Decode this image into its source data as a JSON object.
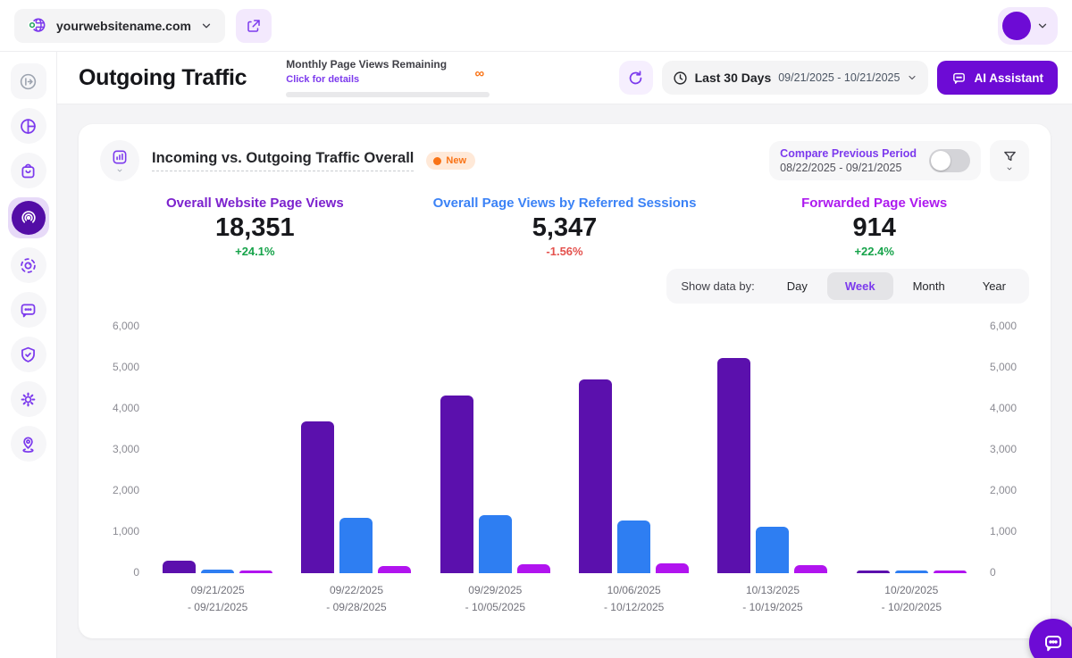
{
  "topbar": {
    "website": "yourwebsitename.com",
    "icons": [
      "globe-status-icon",
      "chevron-down-icon",
      "external-link-icon",
      "avatar",
      "chevron-down-icon"
    ]
  },
  "header": {
    "title": "Outgoing Traffic",
    "quota_label": "Monthly Page Views Remaining",
    "quota_link": "Click for details",
    "quota_value": "∞",
    "date_range_label": "Last 30 Days",
    "date_range_value": "09/21/2025 - 10/21/2025",
    "ai_assistant_label": "AI Assistant"
  },
  "sidebar": {
    "items": [
      "collapse-sidebar",
      "analytics-pie",
      "store-bag",
      "outgoing-traffic-active",
      "session-capture",
      "chat-messages",
      "security-shield",
      "settings-gear",
      "location-pin"
    ]
  },
  "card": {
    "title": "Incoming vs. Outgoing Traffic Overall",
    "badge": "New",
    "compare": {
      "label": "Compare Previous Period",
      "range": "08/22/2025 - 09/21/2025",
      "enabled": false
    },
    "metrics": [
      {
        "label": "Overall Website Page Views",
        "value": "18,351",
        "delta": "+24.1%",
        "trend": "up",
        "color": "#7c22ce"
      },
      {
        "label": "Overall Page Views by Referred Sessions",
        "value": "5,347",
        "delta": "-1.56%",
        "trend": "down",
        "color": "#3b82f6"
      },
      {
        "label": "Forwarded Page Views",
        "value": "914",
        "delta": "+22.4%",
        "trend": "up",
        "color": "#ad1aef"
      }
    ],
    "show_data_by": {
      "label": "Show data by:",
      "options": [
        "Day",
        "Week",
        "Month",
        "Year"
      ],
      "selected": "Week"
    }
  },
  "chart_data": {
    "type": "bar",
    "title": "Incoming vs. Outgoing Traffic Overall",
    "categories": [
      {
        "line1": "09/21/2025",
        "line2": "- 09/21/2025"
      },
      {
        "line1": "09/22/2025",
        "line2": "- 09/28/2025"
      },
      {
        "line1": "09/29/2025",
        "line2": "- 10/05/2025"
      },
      {
        "line1": "10/06/2025",
        "line2": "- 10/12/2025"
      },
      {
        "line1": "10/13/2025",
        "line2": "- 10/19/2025"
      },
      {
        "line1": "10/20/2025",
        "line2": "- 10/20/2025"
      }
    ],
    "series": [
      {
        "name": "Overall Website Page Views",
        "color": "#5b10ad",
        "values": [
          300,
          3700,
          4330,
          4720,
          5230,
          71
        ]
      },
      {
        "name": "Overall Page Views by Referred Sessions",
        "color": "#2e7ef2",
        "values": [
          95,
          1340,
          1415,
          1285,
          1140,
          72
        ]
      },
      {
        "name": "Forwarded Page Views",
        "color": "#b114ef",
        "values": [
          60,
          170,
          210,
          230,
          200,
          44
        ]
      }
    ],
    "ylim": [
      0,
      6000
    ],
    "yticks": [
      "6,000",
      "5,000",
      "4,000",
      "3,000",
      "2,000",
      "1,000",
      "0"
    ],
    "grid": false,
    "legend": false,
    "y_axis_sides": "both"
  }
}
